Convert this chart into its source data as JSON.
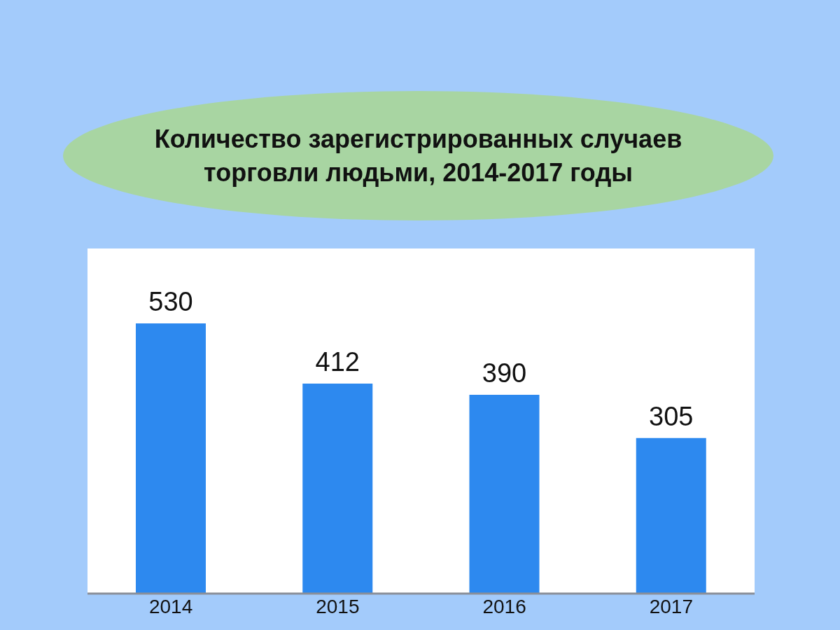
{
  "chart_data": {
    "type": "bar",
    "title": "Количество зарегистрированных случаев торговли людьми, 2014-2017 годы",
    "categories": [
      "2014",
      "2015",
      "2016",
      "2017"
    ],
    "values": [
      530,
      412,
      390,
      305
    ],
    "color": "#2d89ef",
    "data_labels": true
  }
}
